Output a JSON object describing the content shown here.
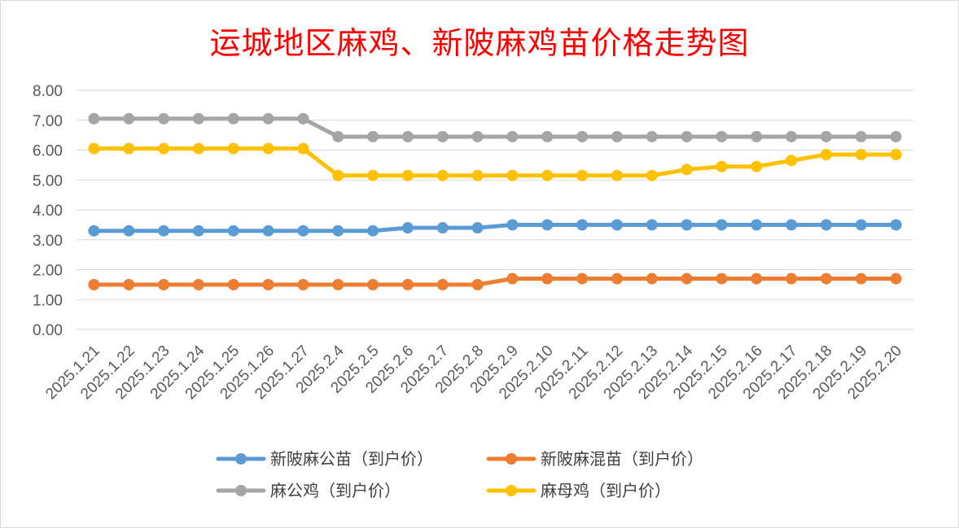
{
  "chart_data": {
    "type": "line",
    "title": "运城地区麻鸡、新陂麻鸡苗价格走势图",
    "categories": [
      "2025.1.21",
      "2025.1.22",
      "2025.1.23",
      "2025.1.24",
      "2025.1.25",
      "2025.1.26",
      "2025.1.27",
      "2025.2.4",
      "2025.2.5",
      "2025.2.6",
      "2025.2.7",
      "2025.2.8",
      "2025.2.9",
      "2025.2.10",
      "2025.2.11",
      "2025.2.12",
      "2025.2.13",
      "2025.2.14",
      "2025.2.15",
      "2025.2.16",
      "2025.2.17",
      "2025.2.18",
      "2025.2.19",
      "2025.2.20"
    ],
    "y_ticks": [
      "0.00",
      "1.00",
      "2.00",
      "3.00",
      "4.00",
      "5.00",
      "6.00",
      "7.00",
      "8.00"
    ],
    "ylim": [
      0,
      8
    ],
    "grid": true,
    "legend_position": "bottom",
    "series": [
      {
        "name": "新陂麻公苗（到户价）",
        "color": "#5b9bd5",
        "values": [
          3.3,
          3.3,
          3.3,
          3.3,
          3.3,
          3.3,
          3.3,
          3.3,
          3.3,
          3.4,
          3.4,
          3.4,
          3.5,
          3.5,
          3.5,
          3.5,
          3.5,
          3.5,
          3.5,
          3.5,
          3.5,
          3.5,
          3.5,
          3.5
        ]
      },
      {
        "name": "新陂麻混苗（到户价）",
        "color": "#ed7d31",
        "values": [
          1.5,
          1.5,
          1.5,
          1.5,
          1.5,
          1.5,
          1.5,
          1.5,
          1.5,
          1.5,
          1.5,
          1.5,
          1.7,
          1.7,
          1.7,
          1.7,
          1.7,
          1.7,
          1.7,
          1.7,
          1.7,
          1.7,
          1.7,
          1.7
        ]
      },
      {
        "name": "麻公鸡（到户价）",
        "color": "#a5a5a5",
        "values": [
          7.05,
          7.05,
          7.05,
          7.05,
          7.05,
          7.05,
          7.05,
          6.45,
          6.45,
          6.45,
          6.45,
          6.45,
          6.45,
          6.45,
          6.45,
          6.45,
          6.45,
          6.45,
          6.45,
          6.45,
          6.45,
          6.45,
          6.45,
          6.45
        ]
      },
      {
        "name": "麻母鸡（到户价）",
        "color": "#ffc000",
        "values": [
          6.05,
          6.05,
          6.05,
          6.05,
          6.05,
          6.05,
          6.05,
          5.15,
          5.15,
          5.15,
          5.15,
          5.15,
          5.15,
          5.15,
          5.15,
          5.15,
          5.15,
          5.35,
          5.45,
          5.45,
          5.65,
          5.85,
          5.85,
          5.85
        ]
      }
    ]
  }
}
